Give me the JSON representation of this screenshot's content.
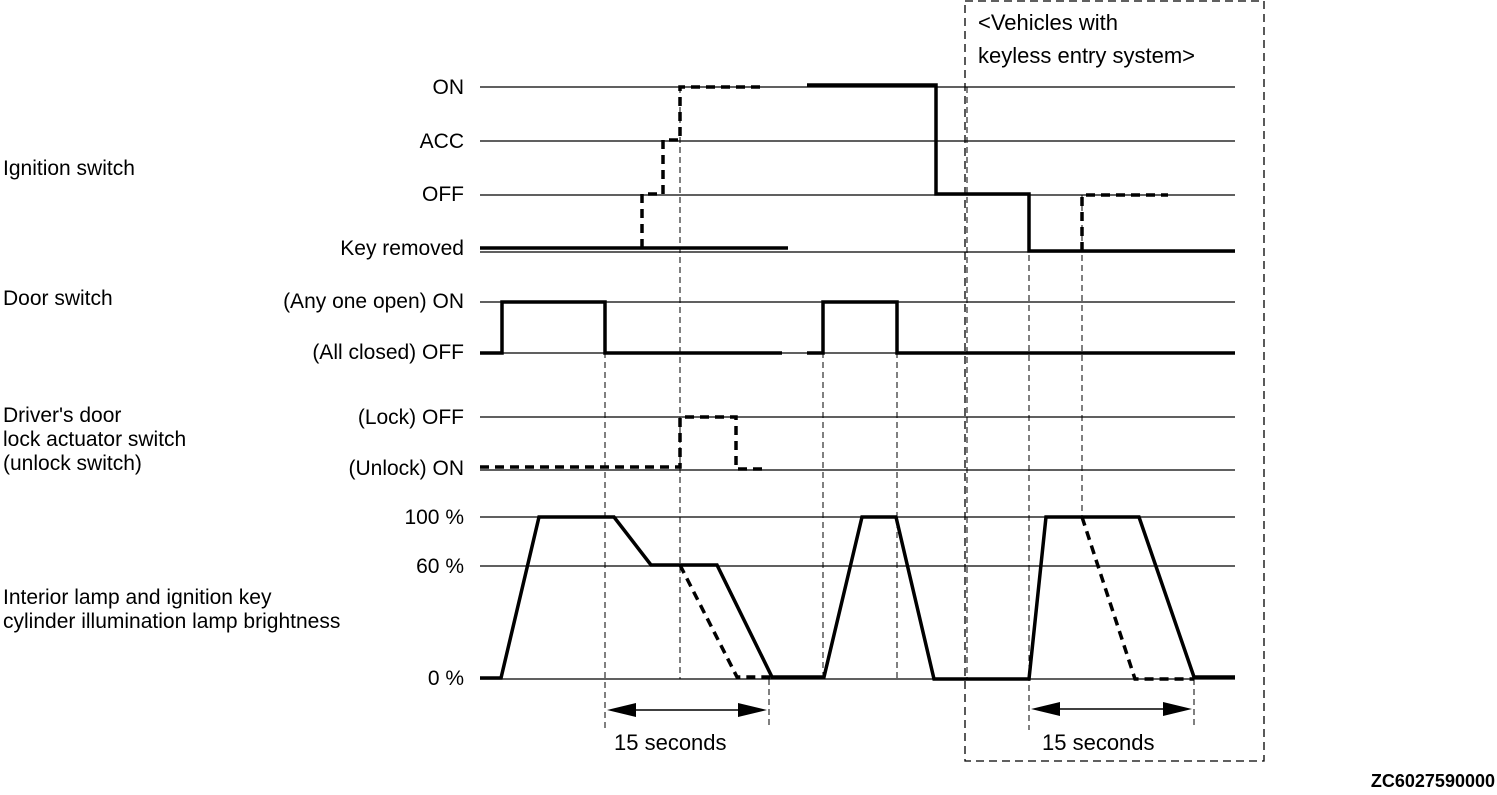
{
  "signals": {
    "ignition_switch": {
      "name": "Ignition switch",
      "levels": [
        "ON",
        "ACC",
        "OFF",
        "Key removed"
      ]
    },
    "door_switch": {
      "name": "Door switch",
      "levels": [
        "(Any one open) ON",
        "(All closed) OFF"
      ]
    },
    "driver_door_lock_actuator": {
      "name_lines": [
        "Driver's door",
        "lock actuator switch",
        "(unlock switch)"
      ],
      "levels": [
        "(Lock) OFF",
        "(Unlock) ON"
      ]
    },
    "interior_lamp": {
      "name_lines": [
        "Interior lamp and ignition key",
        "cylinder illumination lamp brightness"
      ],
      "levels": [
        "100 %",
        "60 %",
        "0 %"
      ]
    }
  },
  "keyless_box": {
    "label_lines": [
      "<Vehicles with",
      "keyless entry system>"
    ]
  },
  "timing": [
    {
      "label": "15 seconds"
    },
    {
      "label": "15 seconds"
    }
  ],
  "figure_code": "ZC6027590000"
}
